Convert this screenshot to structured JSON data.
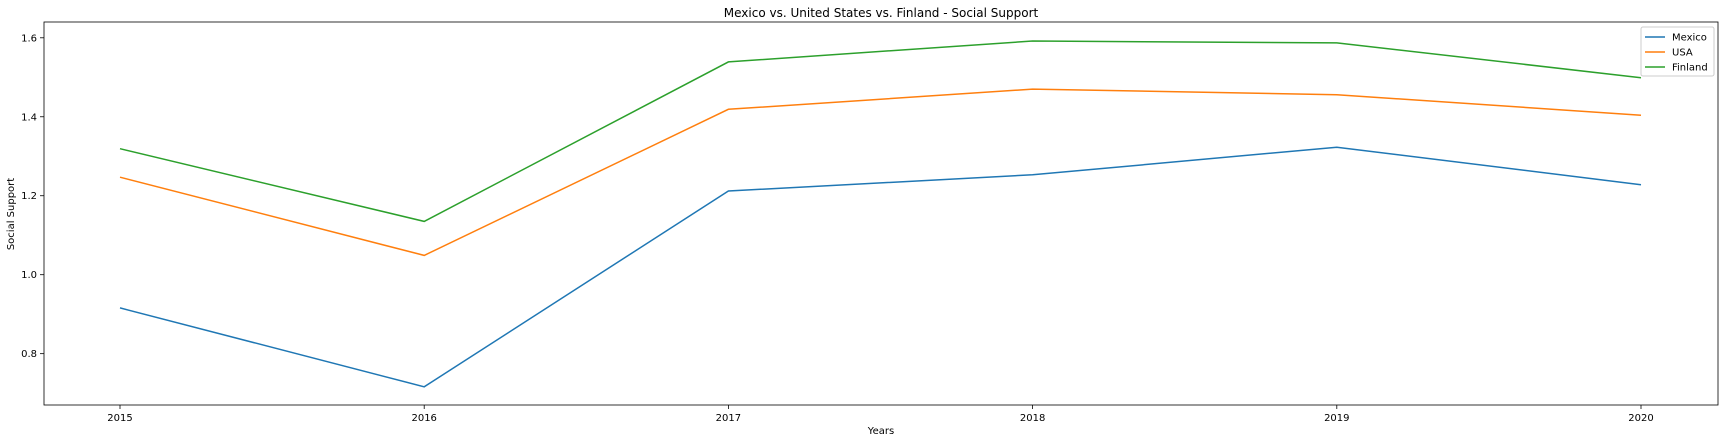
{
  "chart_data": {
    "type": "line",
    "title": "Mexico vs. United States vs. Finland - Social Support",
    "xlabel": "Years",
    "ylabel": "Social Support",
    "x": [
      "2015",
      "2016",
      "2017",
      "2018",
      "2019",
      "2020"
    ],
    "ylim": [
      0.67,
      1.64
    ],
    "yticks": [
      "0.8",
      "1.0",
      "1.2",
      "1.4",
      "1.6"
    ],
    "grid": false,
    "legend_position": "top-right",
    "series": [
      {
        "name": "Mexico",
        "color": "#1f77b4",
        "values": [
          0.916,
          0.716,
          1.212,
          1.253,
          1.323,
          1.228
        ]
      },
      {
        "name": "USA",
        "color": "#ff7f0e",
        "values": [
          1.247,
          1.049,
          1.419,
          1.47,
          1.456,
          1.404
        ]
      },
      {
        "name": "Finland",
        "color": "#2ca02c",
        "values": [
          1.319,
          1.135,
          1.539,
          1.592,
          1.587,
          1.499
        ]
      }
    ]
  }
}
